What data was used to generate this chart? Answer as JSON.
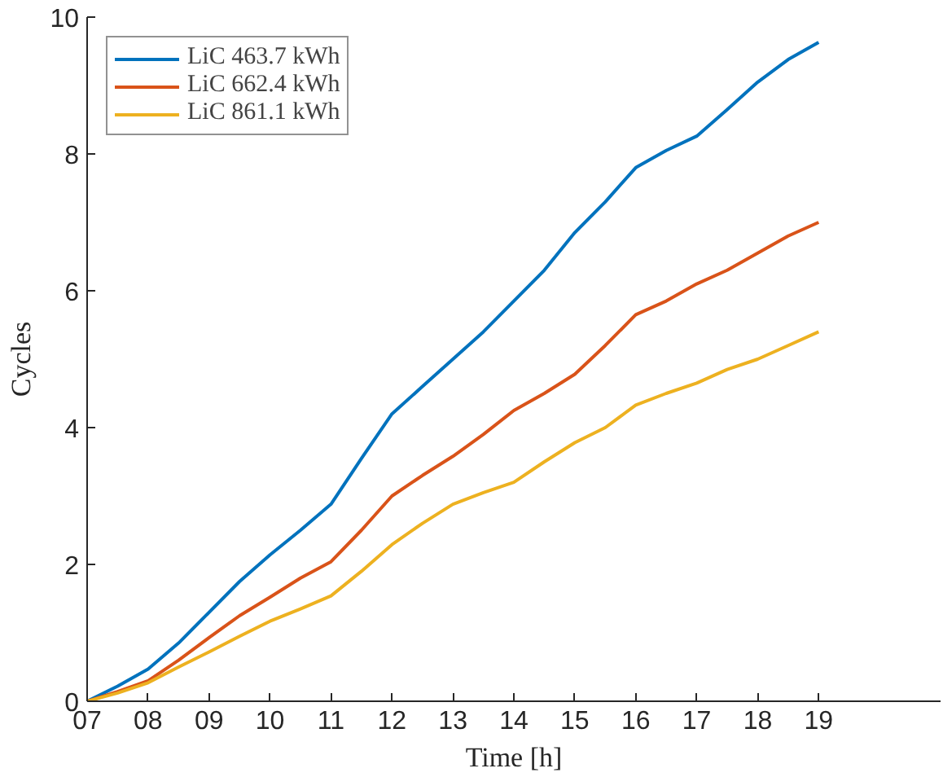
{
  "chart_data": {
    "type": "line",
    "xlabel": "Time [h]",
    "ylabel": "Cycles",
    "x": [
      7,
      7.5,
      8,
      8.5,
      9,
      9.5,
      10,
      10.5,
      11,
      11.5,
      12,
      12.5,
      13,
      13.5,
      14,
      14.5,
      15,
      15.5,
      16,
      16.5,
      17,
      17.5,
      18,
      18.5,
      19
    ],
    "series": [
      {
        "name": "LiC 463.7 kWh",
        "color": "#0072bd",
        "values": [
          0,
          0.22,
          0.47,
          0.85,
          1.3,
          1.75,
          2.14,
          2.5,
          2.88,
          3.55,
          4.2,
          4.6,
          5.0,
          5.4,
          5.85,
          6.3,
          6.85,
          7.3,
          7.8,
          8.05,
          8.26,
          8.65,
          9.05,
          9.38,
          9.63
        ]
      },
      {
        "name": "LiC 662.4 kWh",
        "color": "#d95319",
        "values": [
          0,
          0.14,
          0.3,
          0.6,
          0.93,
          1.25,
          1.52,
          1.8,
          2.04,
          2.5,
          3.0,
          3.3,
          3.58,
          3.9,
          4.25,
          4.5,
          4.78,
          5.2,
          5.65,
          5.85,
          6.1,
          6.3,
          6.55,
          6.8,
          7.0
        ]
      },
      {
        "name": "LiC 861.1 kWh",
        "color": "#edb120",
        "values": [
          0,
          0.12,
          0.27,
          0.5,
          0.72,
          0.95,
          1.17,
          1.35,
          1.54,
          1.9,
          2.29,
          2.6,
          2.88,
          3.05,
          3.2,
          3.5,
          3.78,
          4.0,
          4.33,
          4.5,
          4.65,
          4.85,
          5.0,
          5.2,
          5.4
        ]
      }
    ],
    "xlim": [
      7,
      21
    ],
    "ylim": [
      0,
      10
    ],
    "xticks": [
      {
        "value": 7,
        "label": "07"
      },
      {
        "value": 8,
        "label": "08"
      },
      {
        "value": 9,
        "label": "09"
      },
      10,
      11,
      12,
      13,
      14,
      15,
      16,
      17,
      18,
      19
    ],
    "yticks": [
      0,
      2,
      4,
      6,
      8,
      10
    ],
    "legend": "top left",
    "grid": false,
    "line_style": "solid",
    "marker": "none"
  }
}
